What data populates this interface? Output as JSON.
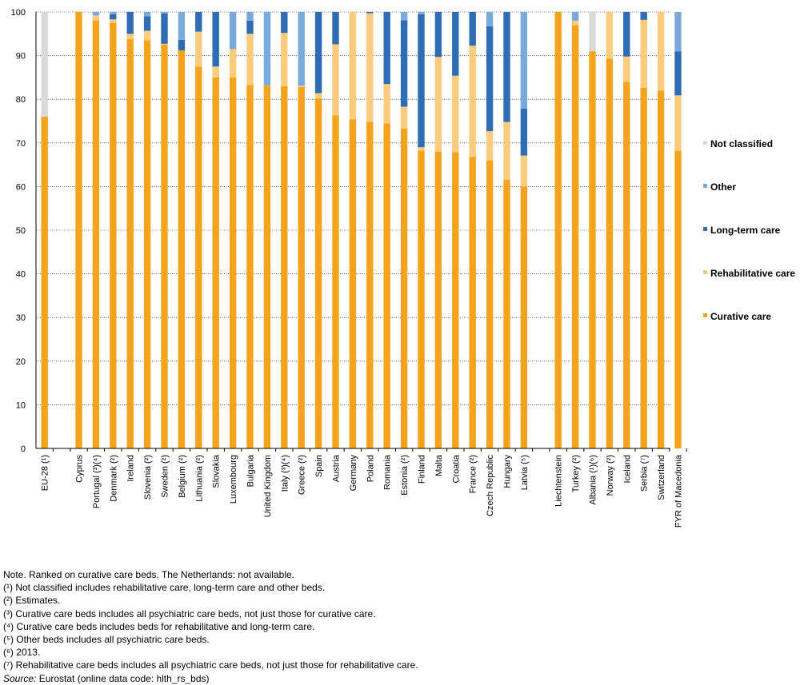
{
  "chart_data": {
    "type": "bar",
    "stacked": true,
    "orientation": "vertical",
    "ylim": [
      0,
      100
    ],
    "yticks": [
      0,
      10,
      20,
      30,
      40,
      50,
      60,
      70,
      80,
      90,
      100
    ],
    "grid": true,
    "legend_position": "right",
    "title": "",
    "xlabel": "",
    "ylabel": "",
    "categories": [
      "EU-28 (¹)",
      "",
      "Cyprus",
      "Portugal (³)(⁴)",
      "Denmark (²)",
      "Ireland",
      "Slovenia (²)",
      "Sweden (²)",
      "Belgium (²)",
      "Lithuania (²)",
      "Slovakia",
      "Luxembourg",
      "Bulgaria",
      "United Kingdom",
      "Italy (³)(⁴)",
      "Greece (²)",
      "Spain",
      "Austria",
      "Germany",
      "Poland",
      "Romania",
      "Estonia (²)",
      "Finland",
      "Malta",
      "Croatia",
      "France (²)",
      "Czech Republic",
      "Hungary",
      "Latvia (⁵)",
      "",
      "Liechtenstein",
      "Turkey (²)",
      "Albania (¹)(⁶)",
      "Norway (²)",
      "Iceland",
      "Serbia (⁷)",
      "Switzerland",
      "FYR of Macedonia"
    ],
    "series": [
      {
        "name": "Curative care",
        "color": "#F4A41C",
        "values": [
          76.0,
          null,
          100.0,
          98.0,
          97.5,
          93.8,
          93.5,
          92.5,
          91.2,
          87.5,
          85.0,
          85.0,
          83.3,
          83.2,
          83.0,
          82.8,
          80.2,
          76.3,
          75.4,
          74.8,
          74.5,
          73.3,
          68.2,
          68.0,
          67.9,
          66.8,
          66.0,
          61.6,
          60.0,
          null,
          100.0,
          97.0,
          91.0,
          89.3,
          84.0,
          82.6,
          82.0,
          68.2
        ]
      },
      {
        "name": "Rehabilitative care",
        "color": "#FBCB7E",
        "values": [
          0,
          null,
          0,
          1.2,
          0.8,
          1.2,
          2.2,
          0.2,
          0,
          8.0,
          2.5,
          6.5,
          11.7,
          0,
          12.2,
          0.3,
          1.2,
          16.3,
          24.6,
          24.9,
          9.0,
          5.0,
          0.8,
          21.7,
          17.5,
          25.5,
          6.7,
          13.2,
          7.1,
          null,
          0,
          1.0,
          0,
          10.7,
          5.8,
          15.6,
          18.0,
          12.7
        ]
      },
      {
        "name": "Long-term care",
        "color": "#2E6DB4",
        "values": [
          0,
          null,
          0,
          0,
          1.2,
          5.0,
          3.3,
          7.0,
          2.4,
          4.5,
          12.5,
          0,
          3.0,
          0,
          4.8,
          0,
          18.6,
          7.4,
          0,
          0.3,
          16.5,
          19.8,
          30.5,
          10.3,
          14.6,
          7.7,
          24.0,
          25.2,
          10.8,
          null,
          0,
          0,
          0,
          0,
          10.2,
          1.8,
          0,
          10.1
        ]
      },
      {
        "name": "Other",
        "color": "#7AA9DB",
        "values": [
          0,
          null,
          0,
          0.8,
          0.5,
          0,
          1.0,
          0.3,
          6.4,
          0,
          0,
          8.5,
          2.0,
          16.8,
          0,
          16.9,
          0,
          0,
          0,
          0,
          0,
          1.9,
          0.5,
          0,
          0,
          0,
          3.3,
          0,
          22.1,
          null,
          0,
          2.0,
          0,
          0,
          0,
          0,
          0,
          9.0
        ]
      },
      {
        "name": "Not classified",
        "color": "#D9D9D9",
        "values": [
          24.0,
          null,
          0,
          0,
          0,
          0,
          0,
          0,
          0,
          0,
          0,
          0,
          0,
          0,
          0,
          0,
          0,
          0,
          0,
          0,
          0,
          0,
          0,
          0,
          0,
          0,
          0,
          0,
          0,
          null,
          0,
          0,
          9.0,
          0,
          0,
          0,
          0,
          0
        ]
      }
    ],
    "legend_order": [
      "Not classified",
      "Other",
      "Long-term care",
      "Rehabilitative care",
      "Curative care"
    ]
  },
  "notes": {
    "lines": [
      "Note. Ranked on curative care beds. The Netherlands: not available.",
      "(¹) Not classified includes rehabilitative care, long-term care and other beds.",
      "(²) Estimates.",
      "(³) Curative care beds includes all psychiatric care beds, not just those for curative care.",
      "(⁴) Curative care beds includes beds for rehabilitative and long-term care.",
      "(⁵) Other beds includes all psychiatric care beds.",
      "(⁶) 2013.",
      "(⁷) Rehabilitative care beds includes all psychiatric care beds, not just those for rehabilitative care."
    ],
    "source_label": "Source:",
    "source_text": " Eurostat (online data code: hlth_rs_bds)"
  }
}
